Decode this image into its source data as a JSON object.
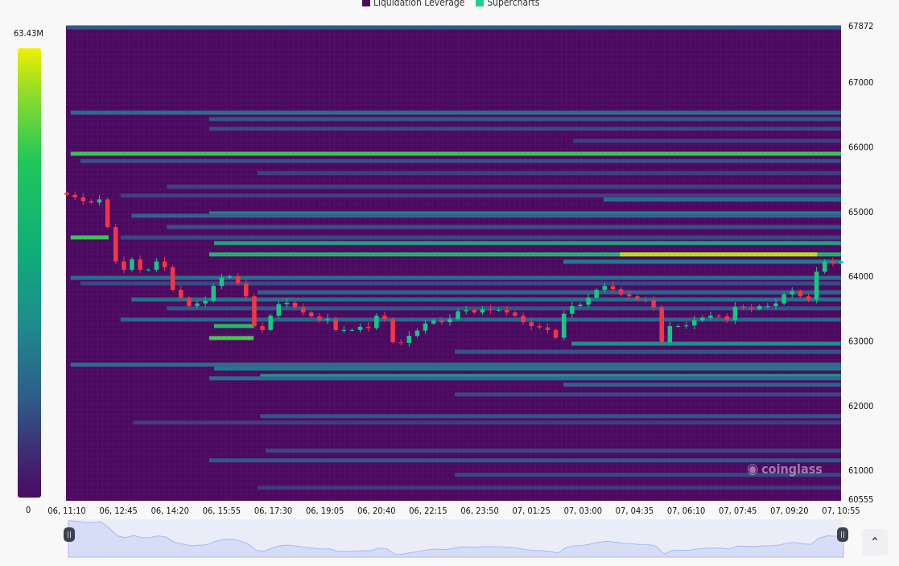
{
  "legend": [
    {
      "label": "Liquidation Leverage",
      "color": "#4b0a5f"
    },
    {
      "label": "Supercharts",
      "color": "#1fd08a"
    }
  ],
  "colorbar": {
    "max_label": "63.43M",
    "min_label": "0",
    "max": 63.43,
    "min": 0
  },
  "watermark": "coinglass",
  "scroll_top_icon": "chevron-up-icon",
  "chart_data": {
    "type": "heatmap",
    "title": "",
    "ylim": [
      60555,
      67872
    ],
    "yticks": [
      "67872",
      "67000",
      "66000",
      "65000",
      "64000",
      "63000",
      "62000",
      "61000",
      "60555"
    ],
    "ytick_values": [
      67872,
      67000,
      66000,
      65000,
      64000,
      63000,
      62000,
      61000,
      60555
    ],
    "xticks": [
      "06, 11:10",
      "06, 12:45",
      "06, 14:20",
      "06, 15:55",
      "06, 17:30",
      "06, 19:05",
      "06, 20:40",
      "06, 22:15",
      "06, 23:50",
      "07, 01:25",
      "07, 03:00",
      "07, 04:35",
      "07, 06:10",
      "07, 07:45",
      "07, 09:20",
      "07, 10:55"
    ],
    "xlim": [
      "06, 11:10",
      "07, 10:55"
    ],
    "value_unit": "M",
    "bands": [
      {
        "price": 67847,
        "from": "06, 11:10",
        "value": 16
      },
      {
        "price": 66528,
        "from": "06, 11:17",
        "value": 20
      },
      {
        "price": 66429,
        "from": "06, 15:32",
        "value": 15
      },
      {
        "price": 66280,
        "from": "06, 15:32",
        "value": 12
      },
      {
        "price": 66093,
        "from": "07, 02:42",
        "value": 10
      },
      {
        "price": 65894,
        "from": "06, 11:17",
        "value": 42
      },
      {
        "price": 65782,
        "from": "06, 11:35",
        "value": 14
      },
      {
        "price": 65595,
        "from": "06, 17:01",
        "value": 11
      },
      {
        "price": 65384,
        "from": "06, 14:14",
        "value": 11
      },
      {
        "price": 65247,
        "from": "06, 12:49",
        "value": 10
      },
      {
        "price": 65185,
        "from": "07, 03:38",
        "value": 20
      },
      {
        "price": 64973,
        "from": "06, 15:32",
        "value": 24
      },
      {
        "price": 64936,
        "from": "06, 13:09",
        "value": 18
      },
      {
        "price": 64762,
        "from": "06, 14:14",
        "value": 14
      },
      {
        "price": 64600,
        "from": "06, 11:17",
        "to": "06, 12:27",
        "value": 42
      },
      {
        "price": 64600,
        "from": "06, 12:49",
        "value": 12
      },
      {
        "price": 64513,
        "from": "06, 15:41",
        "value": 32
      },
      {
        "price": 64339,
        "from": "06, 15:32",
        "value": 36
      },
      {
        "price": 64339,
        "from": "07, 04:08",
        "to": "07, 10:11",
        "value": 58
      },
      {
        "price": 64225,
        "from": "07, 02:24",
        "value": 22
      },
      {
        "price": 63976,
        "from": "06, 11:17",
        "value": 20
      },
      {
        "price": 63890,
        "from": "06, 11:35",
        "value": 12
      },
      {
        "price": 63753,
        "from": "06, 17:01",
        "value": 18
      },
      {
        "price": 63641,
        "from": "06, 13:09",
        "value": 20
      },
      {
        "price": 63505,
        "from": "06, 14:14",
        "value": 15
      },
      {
        "price": 63331,
        "from": "06, 12:49",
        "value": 18
      },
      {
        "price": 63232,
        "from": "06, 15:41",
        "to": "06, 16:54",
        "value": 38
      },
      {
        "price": 63045,
        "from": "06, 15:32",
        "to": "06, 16:54",
        "value": 44
      },
      {
        "price": 62958,
        "from": "07, 02:39",
        "value": 28
      },
      {
        "price": 62833,
        "from": "06, 23:04",
        "value": 15
      },
      {
        "price": 62634,
        "from": "06, 11:17",
        "value": 20
      },
      {
        "price": 62572,
        "from": "06, 15:41",
        "value": 22
      },
      {
        "price": 62460,
        "from": "06, 17:06",
        "value": 30
      },
      {
        "price": 62423,
        "from": "06, 15:32",
        "value": 20
      },
      {
        "price": 62323,
        "from": "07, 02:24",
        "value": 18
      },
      {
        "price": 62174,
        "from": "06, 23:04",
        "value": 12
      },
      {
        "price": 61838,
        "from": "06, 17:06",
        "value": 15
      },
      {
        "price": 61739,
        "from": "06, 13:12",
        "value": 9
      },
      {
        "price": 61304,
        "from": "06, 17:16",
        "value": 12
      },
      {
        "price": 61155,
        "from": "06, 15:32",
        "value": 15
      },
      {
        "price": 60931,
        "from": "06, 23:04",
        "value": 12
      },
      {
        "price": 60732,
        "from": "06, 17:01",
        "value": 9
      }
    ],
    "price_series": {
      "type": "candlestick",
      "from": "06, 11:10",
      "to": "07, 10:55",
      "closes": [
        65260,
        65220,
        65160,
        65140,
        65190,
        64760,
        64230,
        64100,
        64260,
        64100,
        64100,
        64230,
        64140,
        63790,
        63670,
        63540,
        63580,
        63620,
        63850,
        63980,
        64000,
        63890,
        63690,
        63230,
        63170,
        63390,
        63570,
        63590,
        63520,
        63440,
        63380,
        63320,
        63340,
        63170,
        63170,
        63170,
        63220,
        63200,
        63390,
        63340,
        62980,
        62970,
        63080,
        63160,
        63270,
        63320,
        63290,
        63340,
        63460,
        63480,
        63440,
        63490,
        63480,
        63480,
        63440,
        63390,
        63290,
        63230,
        63210,
        63170,
        63050,
        63420,
        63540,
        63560,
        63670,
        63790,
        63850,
        63800,
        63720,
        63690,
        63640,
        63630,
        63520,
        62980,
        63230,
        63230,
        63240,
        63320,
        63360,
        63390,
        63380,
        63320,
        63530,
        63510,
        63490,
        63540,
        63540,
        63580,
        63720,
        63770,
        63690,
        63640,
        64070,
        64230,
        64200,
        64230
      ],
      "up_color": "#16c784",
      "down_color": "#f23645"
    }
  }
}
